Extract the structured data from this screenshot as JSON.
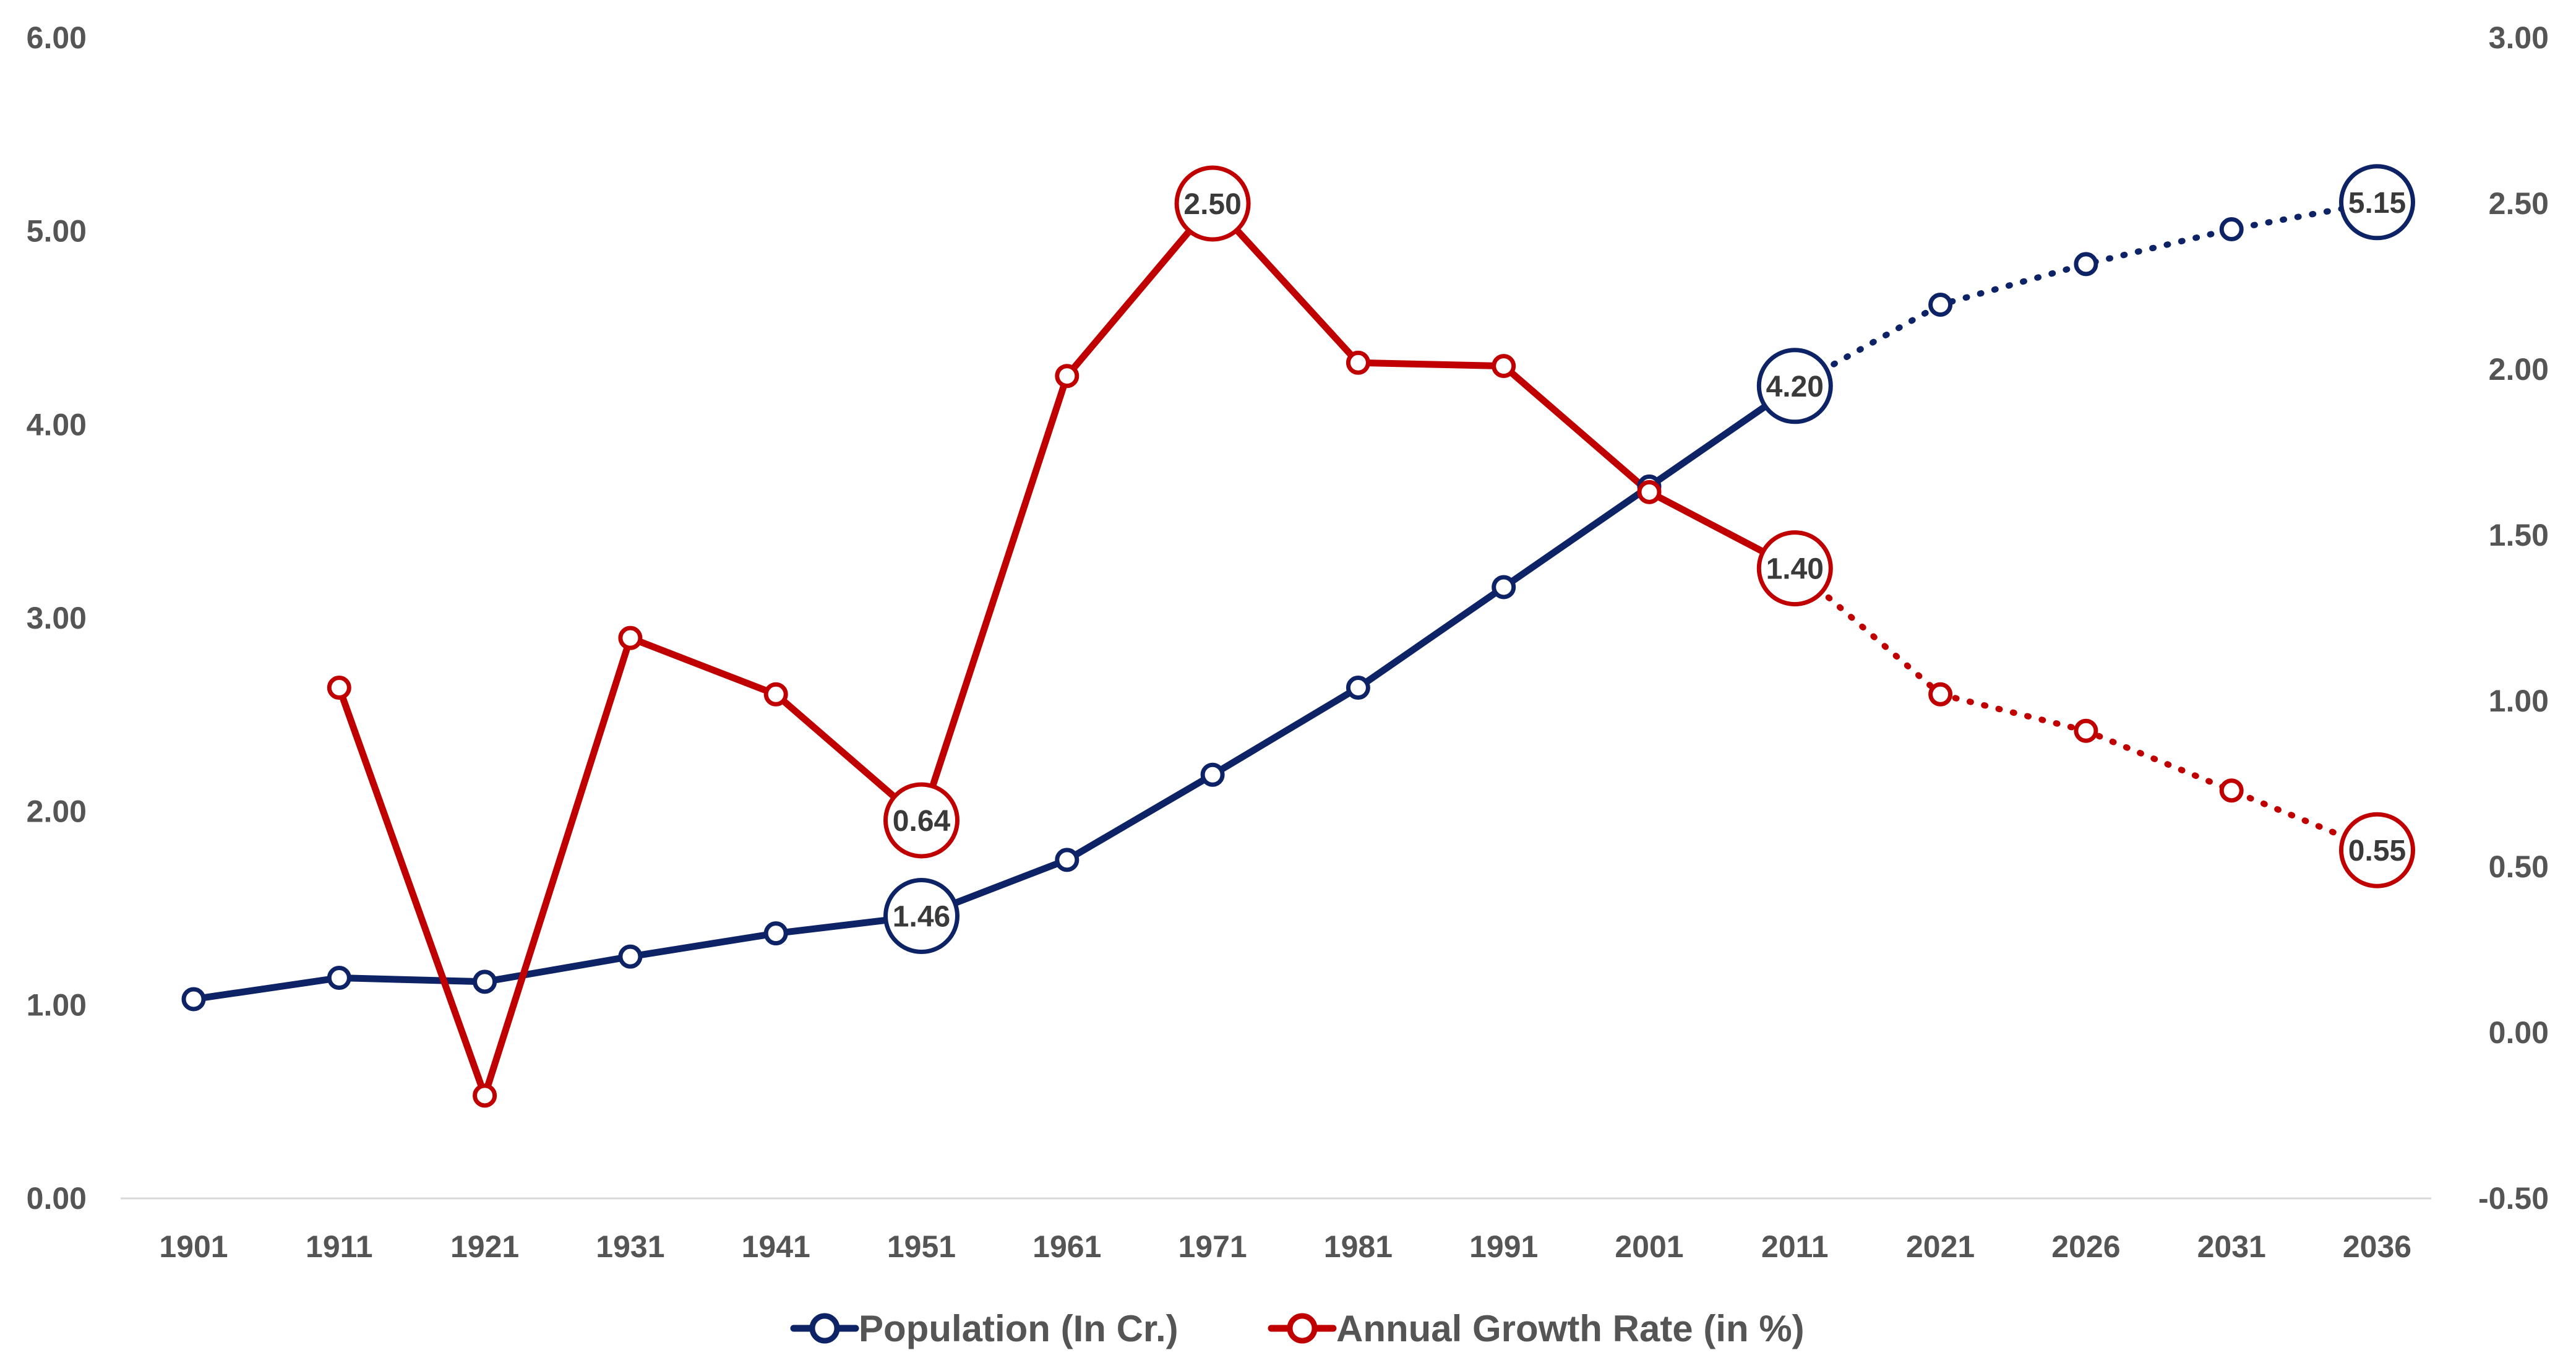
{
  "chart_data": {
    "type": "line",
    "categories": [
      "1901",
      "1911",
      "1921",
      "1931",
      "1941",
      "1951",
      "1961",
      "1971",
      "1981",
      "1991",
      "2001",
      "2011",
      "2021",
      "2026",
      "2031",
      "2036"
    ],
    "y_left": {
      "ylim": [
        0,
        6
      ],
      "ticks": [
        "0.00",
        "1.00",
        "2.00",
        "3.00",
        "4.00",
        "5.00",
        "6.00"
      ]
    },
    "y_right": {
      "ylim": [
        -0.5,
        3
      ],
      "ticks": [
        "-0.50",
        "0.00",
        "0.50",
        "1.00",
        "1.50",
        "2.00",
        "2.50",
        "3.00"
      ]
    },
    "grid": false,
    "legend_position": "bottom-center",
    "series": [
      {
        "name": "Population (In Cr.)",
        "axis": "left",
        "color": "#0d2366",
        "values": [
          1.03,
          1.14,
          1.12,
          1.25,
          1.37,
          1.46,
          1.75,
          2.19,
          2.64,
          3.16,
          3.68,
          4.2,
          4.62,
          4.83,
          5.01,
          5.15
        ],
        "projected_from_index": 11,
        "data_labels": [
          {
            "index": 5,
            "text": "1.46"
          },
          {
            "index": 11,
            "text": "4.20"
          },
          {
            "index": 15,
            "text": "5.15"
          }
        ]
      },
      {
        "name": "Annual Growth Rate (in %)",
        "axis": "right",
        "color": "#c00000",
        "values": [
          null,
          1.04,
          -0.19,
          1.19,
          1.02,
          0.64,
          1.98,
          2.5,
          2.02,
          2.01,
          1.63,
          1.4,
          1.02,
          0.91,
          0.73,
          0.55
        ],
        "projected_from_index": 11,
        "data_labels": [
          {
            "index": 5,
            "text": "0.64"
          },
          {
            "index": 7,
            "text": "2.50"
          },
          {
            "index": 11,
            "text": "1.40"
          },
          {
            "index": 15,
            "text": "0.55"
          }
        ]
      }
    ]
  }
}
